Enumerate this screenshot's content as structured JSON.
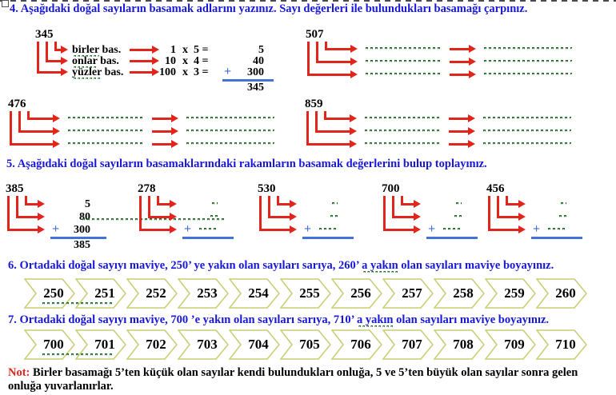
{
  "q4": {
    "title": "4. Aşağıdaki doğal sayıların basamak adlarını yazınız. Sayı değerleri ile bulundukları basamağı çarpınız.",
    "worked": {
      "number": "345",
      "rows": [
        {
          "place_word": "birler",
          "place_rest": " bas.",
          "base": "1",
          "mult": "x",
          "digit_eq": "5 =",
          "result": "5"
        },
        {
          "place_word": "onlar",
          "place_rest": " bas.",
          "base": "10",
          "mult": "x",
          "digit_eq": "4 =",
          "result": "40"
        },
        {
          "place_word": "yüzler",
          "place_rest": " bas.",
          "base": "100",
          "mult": "x",
          "digit_eq": "3 =",
          "result": "300"
        }
      ],
      "plus_sign": "+",
      "total": "345"
    },
    "blank_numbers": [
      "507",
      "476",
      "859"
    ]
  },
  "q5": {
    "title": "5. Aşağıdaki doğal sayıların basamaklarındaki rakamların basamak değerlerini bulup toplayınız.",
    "worked": {
      "number": "385",
      "addends": [
        "5",
        "80",
        "300"
      ],
      "plus_sign": "+",
      "total": "385"
    },
    "blank_numbers": [
      "278",
      "530",
      "700",
      "456"
    ],
    "blank_plus_sign": "+"
  },
  "q6": {
    "title_pre": "6. Ortadaki doğal sayıyı maviye, 250’ ye yakın olan sayıları sarıya, 260’ ",
    "title_wavy": "a  yakın",
    "title_post": " olan sayıları maviye boyayınız.",
    "cells": [
      "250",
      "251",
      "252",
      "253",
      "254",
      "255",
      "256",
      "257",
      "258",
      "259",
      "260"
    ]
  },
  "q7": {
    "title_pre": "7. Ortadaki doğal sayıyı maviye, 700 ’e yakın olan sayıları sarıya, 710’ ",
    "title_wavy": "a  yakın",
    "title_post": " olan sayıları maviye boyayınız.",
    "cells": [
      "700",
      "701",
      "702",
      "703",
      "704",
      "705",
      "706",
      "707",
      "708",
      "709",
      "710"
    ]
  },
  "note": {
    "label": "Not:",
    "text": "  Birler basamağı 5’ten küçük olan sayılar kendi bulundukları onluğa, 5 ve 5’ten büyük olan sayılar sonra gelen onluğa yuvarlanırlar."
  },
  "colors": {
    "heading_blue": "#1717d9",
    "arrow_red": "#e1251b",
    "sum_blue": "#4472d9",
    "squiggle_green": "#1e6b26",
    "chevron_outline": "#c8cc72"
  }
}
